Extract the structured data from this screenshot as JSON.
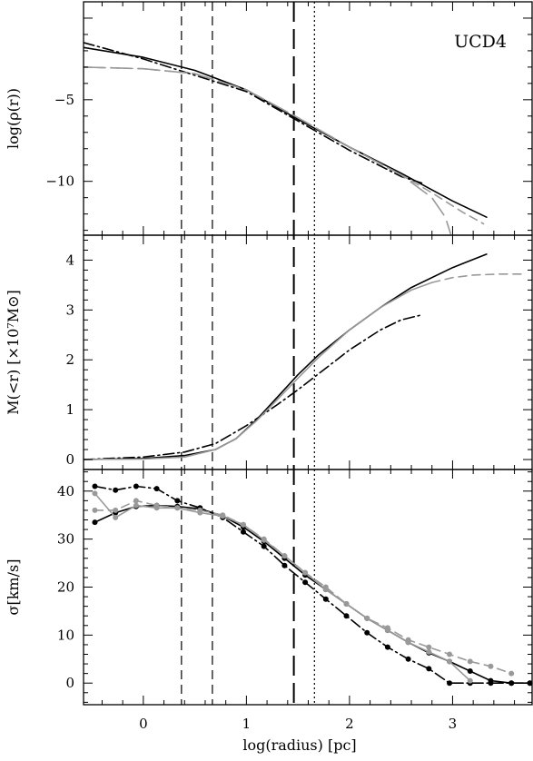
{
  "chart_data": {
    "type": "line",
    "panel_label": "UCD4",
    "xlabel": "log(radius) [pc]",
    "xlim": [
      -0.58,
      3.78
    ],
    "x_ticks": [
      0,
      1,
      2,
      3
    ],
    "x_tick_labels": [
      "0",
      "1",
      "2",
      "3"
    ],
    "vertical_lines": [
      {
        "x": 0.37,
        "style": "short-dash",
        "color": "#000000"
      },
      {
        "x": 0.67,
        "style": "short-dash",
        "color": "#000000"
      },
      {
        "x": 1.46,
        "style": "long-dash",
        "color": "#000000"
      },
      {
        "x": 1.66,
        "style": "dotted",
        "color": "#000000"
      }
    ],
    "panels": [
      {
        "name": "density",
        "ylabel": "log(ρ(r))",
        "ylim": [
          -13.3,
          1.0
        ],
        "y_ticks": [
          -10,
          -5
        ],
        "y_tick_labels": [
          "−10",
          "−5"
        ],
        "series": [
          {
            "style": "solid",
            "color": "#000000",
            "markers": false,
            "x": [
              -0.58,
              0.0,
              0.5,
              1.0,
              1.5,
              2.0,
              2.5,
              3.0,
              3.33
            ],
            "y": [
              -1.8,
              -2.4,
              -3.2,
              -4.4,
              -6.2,
              -7.9,
              -9.5,
              -11.2,
              -12.2
            ]
          },
          {
            "style": "dash-dot",
            "color": "#000000",
            "markers": false,
            "x": [
              -0.58,
              0.0,
              0.5,
              1.0,
              1.5,
              2.0,
              2.5,
              2.7
            ],
            "y": [
              -1.5,
              -2.5,
              -3.5,
              -4.5,
              -6.3,
              -8.1,
              -9.7,
              -10.1
            ]
          },
          {
            "style": "dash",
            "color": "#999999",
            "markers": false,
            "x": [
              -0.58,
              0.0,
              0.5,
              1.0,
              1.5,
              2.0,
              2.5,
              2.8,
              3.1,
              3.3
            ],
            "y": [
              -3.0,
              -3.1,
              -3.4,
              -4.4,
              -6.1,
              -7.9,
              -9.6,
              -10.7,
              -11.9,
              -12.6
            ]
          },
          {
            "style": "long-dash",
            "color": "#999999",
            "markers": false,
            "x": [
              -0.58,
              0.0,
              0.5,
              1.0,
              1.5,
              2.0,
              2.5,
              2.8,
              2.93,
              2.98
            ],
            "y": [
              -3.0,
              -3.1,
              -3.4,
              -4.4,
              -6.1,
              -7.9,
              -9.6,
              -11.0,
              -12.2,
              -13.2
            ]
          }
        ]
      },
      {
        "name": "mass",
        "ylabel": "M(<r) [×10⁷M⊙]",
        "ylim": [
          -0.2,
          4.5
        ],
        "y_ticks": [
          0,
          1,
          2,
          3,
          4
        ],
        "y_tick_labels": [
          "0",
          "1",
          "2",
          "3",
          "4"
        ],
        "series": [
          {
            "style": "solid",
            "color": "#000000",
            "markers": false,
            "x": [
              -0.58,
              0.0,
              0.4,
              0.7,
              0.9,
              1.1,
              1.3,
              1.5,
              1.7,
              2.0,
              2.3,
              2.6,
              3.0,
              3.33
            ],
            "y": [
              0.0,
              0.02,
              0.08,
              0.2,
              0.42,
              0.8,
              1.25,
              1.7,
              2.1,
              2.6,
              3.05,
              3.45,
              3.85,
              4.12
            ]
          },
          {
            "style": "dash-dot",
            "color": "#000000",
            "markers": false,
            "x": [
              -0.58,
              0.0,
              0.4,
              0.7,
              1.0,
              1.3,
              1.5,
              1.7,
              2.0,
              2.3,
              2.5,
              2.7
            ],
            "y": [
              0.0,
              0.05,
              0.15,
              0.32,
              0.68,
              1.1,
              1.4,
              1.72,
              2.2,
              2.6,
              2.8,
              2.9
            ]
          },
          {
            "style": "solid",
            "color": "#999999",
            "markers": false,
            "x": [
              -0.58,
              0.0,
              0.4,
              0.7,
              0.9,
              1.1,
              1.3,
              1.5,
              1.7,
              2.0,
              2.3,
              2.6,
              2.8
            ],
            "y": [
              0.0,
              0.01,
              0.05,
              0.2,
              0.42,
              0.78,
              1.2,
              1.63,
              2.05,
              2.6,
              3.05,
              3.4,
              3.55
            ]
          },
          {
            "style": "dash",
            "color": "#999999",
            "markers": false,
            "x": [
              2.8,
              3.0,
              3.2,
              3.45,
              3.7
            ],
            "y": [
              3.55,
              3.65,
              3.7,
              3.72,
              3.72
            ]
          }
        ]
      },
      {
        "name": "dispersion",
        "ylabel": "σ[km/s]",
        "ylim": [
          -4.5,
          44.5
        ],
        "y_ticks": [
          0,
          10,
          20,
          30,
          40
        ],
        "y_tick_labels": [
          "0",
          "10",
          "20",
          "30",
          "40"
        ],
        "series": [
          {
            "style": "dash-dot",
            "color": "#000000",
            "markers": true,
            "x": [
              -0.47,
              -0.27,
              -0.07,
              0.13,
              0.33,
              0.55,
              0.77,
              0.97,
              1.17,
              1.37,
              1.57,
              1.77,
              1.97,
              2.17,
              2.37,
              2.57,
              2.77,
              2.97,
              3.17,
              3.37,
              3.57,
              3.75
            ],
            "y": [
              41.0,
              40.2,
              41.0,
              40.5,
              38.0,
              36.5,
              34.5,
              31.5,
              28.5,
              24.5,
              21.0,
              17.5,
              14.0,
              10.5,
              7.5,
              5.0,
              3.0,
              0.0,
              0.0,
              0.0,
              0.0,
              0.0
            ]
          },
          {
            "style": "solid",
            "color": "#000000",
            "markers": true,
            "x": [
              -0.47,
              -0.27,
              -0.07,
              0.13,
              0.33,
              0.55,
              0.77,
              0.97,
              1.17,
              1.37,
              1.57,
              1.77,
              1.97,
              2.17,
              2.37,
              2.57,
              2.77,
              2.97,
              3.17,
              3.37,
              3.57,
              3.75
            ],
            "y": [
              33.5,
              35.5,
              36.8,
              37.0,
              36.8,
              36.3,
              34.8,
              32.5,
              29.5,
              26.0,
              22.5,
              19.5,
              16.5,
              13.5,
              11.0,
              8.5,
              6.3,
              4.5,
              2.5,
              0.5,
              0.0,
              0.0
            ]
          },
          {
            "style": "dash",
            "color": "#999999",
            "markers": true,
            "x": [
              -0.47,
              -0.27,
              -0.07,
              0.13,
              0.33,
              0.55,
              0.77,
              0.97,
              1.17,
              1.37,
              1.57,
              1.77,
              1.97,
              2.17,
              2.37,
              2.57,
              2.77,
              2.97,
              3.17,
              3.37,
              3.57
            ],
            "y": [
              36.0,
              36.0,
              38.0,
              37.0,
              36.5,
              36.0,
              35.0,
              33.0,
              30.0,
              26.5,
              23.0,
              20.0,
              16.5,
              13.5,
              11.5,
              9.0,
              7.5,
              6.0,
              4.5,
              3.5,
              2.0
            ]
          },
          {
            "style": "solid",
            "color": "#999999",
            "markers": true,
            "x": [
              -0.47,
              -0.27,
              -0.07,
              0.13,
              0.33,
              0.55,
              0.77,
              0.97,
              1.17,
              1.37,
              1.57,
              1.77,
              1.97,
              2.17,
              2.37,
              2.57,
              2.77,
              2.97,
              3.17
            ],
            "y": [
              39.5,
              34.5,
              37.0,
              36.5,
              36.5,
              35.5,
              34.8,
              33.0,
              29.8,
              26.5,
              23.0,
              19.5,
              16.5,
              13.5,
              11.0,
              8.5,
              6.5,
              4.5,
              0.5
            ]
          }
        ]
      }
    ]
  }
}
